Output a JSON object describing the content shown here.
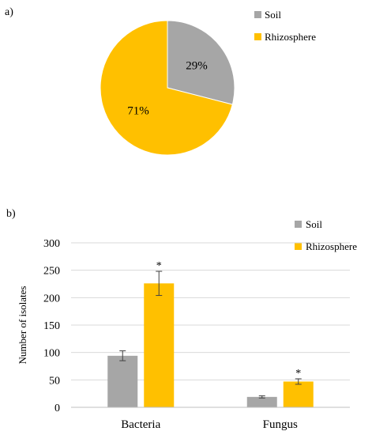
{
  "panels": {
    "a": {
      "label": "a)"
    },
    "b": {
      "label": "b)"
    }
  },
  "colors": {
    "soil": "#a6a6a6",
    "rhizosphere": "#ffc000",
    "gridline": "#d9d9d9"
  },
  "chart_data": [
    {
      "type": "pie",
      "categories": [
        "Soil",
        "Rhizosphere"
      ],
      "values": [
        29,
        71
      ],
      "data_labels": [
        "29%",
        "71%"
      ],
      "legend": {
        "position": "right",
        "entries": [
          "Soil",
          "Rhizosphere"
        ]
      }
    },
    {
      "type": "bar",
      "categories": [
        "Bacteria",
        "Fungus"
      ],
      "series": [
        {
          "name": "Soil",
          "values": [
            94,
            19
          ],
          "errors": [
            9,
            2
          ],
          "markers": [
            "",
            ""
          ]
        },
        {
          "name": "Rhizosphere",
          "values": [
            226,
            47
          ],
          "errors": [
            22,
            5
          ],
          "markers": [
            "*",
            "*"
          ]
        }
      ],
      "ylabel": "Number of isolates",
      "ylim": [
        0,
        300
      ],
      "yticks": [
        0,
        50,
        100,
        150,
        200,
        250,
        300
      ],
      "grid": true,
      "legend": {
        "position": "top-right",
        "entries": [
          "Soil",
          "Rhizosphere"
        ]
      }
    }
  ]
}
